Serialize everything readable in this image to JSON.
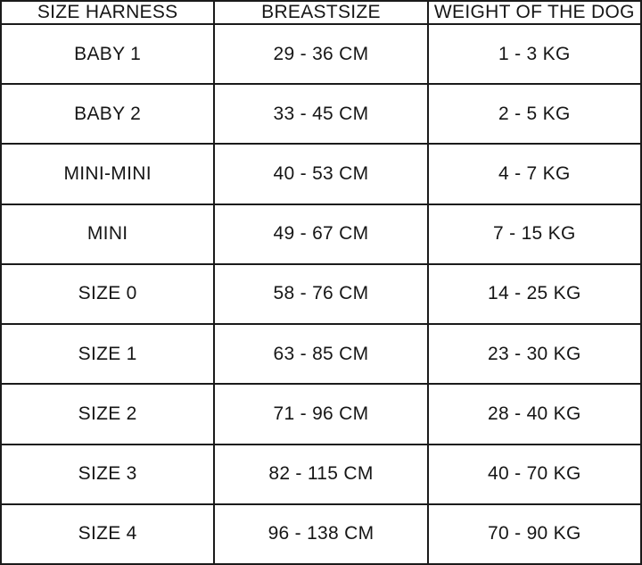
{
  "page": {
    "background_color": "#ffffff",
    "border_color": "#1b1b1b",
    "text_color": "#161616"
  },
  "chart_data": {
    "type": "table",
    "columns": [
      "SIZE HARNESS",
      "BREASTSIZE",
      "WEIGHT OF THE DOG"
    ],
    "rows": [
      [
        "BABY 1",
        "29 - 36 CM",
        "1 - 3 KG"
      ],
      [
        "BABY 2",
        "33 - 45 CM",
        "2 - 5 KG"
      ],
      [
        "MINI-MINI",
        "40 - 53 CM",
        "4 - 7 KG"
      ],
      [
        "MINI",
        "49 - 67 CM",
        "7 - 15 KG"
      ],
      [
        "SIZE 0",
        "58 - 76 CM",
        "14 - 25 KG"
      ],
      [
        "SIZE 1",
        "63 - 85 CM",
        "23 - 30 KG"
      ],
      [
        "SIZE 2",
        "71 - 96 CM",
        "28 - 40 KG"
      ],
      [
        "SIZE 3",
        "82 - 115 CM",
        "40 - 70 KG"
      ],
      [
        "SIZE 4",
        "96 - 138 CM",
        "70 - 90 KG"
      ]
    ]
  }
}
